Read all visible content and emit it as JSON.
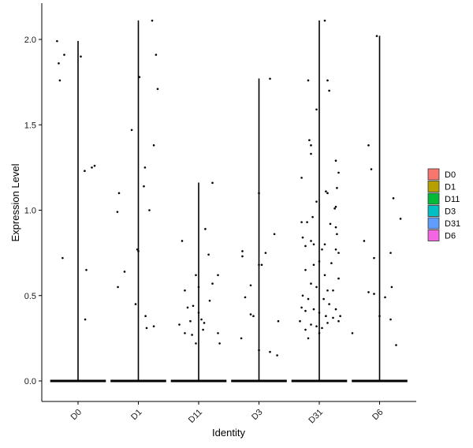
{
  "chart_data": {
    "type": "violin-jitter",
    "xlabel": "Identity",
    "ylabel": "Expression Level",
    "ylim": [
      -0.12,
      2.2
    ],
    "yticks": [
      "0.0",
      "0.5",
      "1.0",
      "1.5",
      "2.0"
    ],
    "ytick_values": [
      0,
      0.5,
      1.0,
      1.5,
      2.0
    ],
    "categories": [
      "D0",
      "D1",
      "D11",
      "D3",
      "D31",
      "D6"
    ],
    "legend": {
      "position": "right",
      "entries": [
        {
          "name": "D0",
          "color": "#F8766D"
        },
        {
          "name": "D1",
          "color": "#B79F00"
        },
        {
          "name": "D11",
          "color": "#00BA38"
        },
        {
          "name": "D3",
          "color": "#00BFC4"
        },
        {
          "name": "D31",
          "color": "#619CFF"
        },
        {
          "name": "D6",
          "color": "#F564E3"
        }
      ]
    },
    "series": [
      {
        "name": "D0",
        "max": 1.99,
        "points": [
          [
            -0.38,
            1.99
          ],
          [
            -0.35,
            1.86
          ],
          [
            -0.33,
            1.76
          ],
          [
            -0.25,
            1.91
          ],
          [
            0.05,
            1.9
          ],
          [
            0.12,
            1.23
          ],
          [
            0.25,
            1.25
          ],
          [
            0.3,
            1.26
          ],
          [
            -0.28,
            0.72
          ],
          [
            0.15,
            0.65
          ],
          [
            0.13,
            0.36
          ]
        ]
      },
      {
        "name": "D1",
        "max": 2.11,
        "points": [
          [
            0.25,
            2.11
          ],
          [
            0.32,
            1.91
          ],
          [
            0.35,
            1.71
          ],
          [
            0.02,
            1.78
          ],
          [
            -0.12,
            1.47
          ],
          [
            0.12,
            1.25
          ],
          [
            0.28,
            1.38
          ],
          [
            0.1,
            1.14
          ],
          [
            -0.35,
            1.1
          ],
          [
            -0.38,
            0.99
          ],
          [
            0.2,
            1.0
          ],
          [
            -0.02,
            0.77
          ],
          [
            0.0,
            0.76
          ],
          [
            -0.25,
            0.64
          ],
          [
            -0.37,
            0.55
          ],
          [
            -0.05,
            0.45
          ],
          [
            0.13,
            0.38
          ],
          [
            0.15,
            0.31
          ],
          [
            0.28,
            0.32
          ]
        ]
      },
      {
        "name": "D11",
        "max": 1.16,
        "points": [
          [
            0.25,
            1.16
          ],
          [
            -0.3,
            0.82
          ],
          [
            0.12,
            0.89
          ],
          [
            0.18,
            0.74
          ],
          [
            -0.25,
            0.53
          ],
          [
            -0.05,
            0.62
          ],
          [
            0.0,
            0.55
          ],
          [
            -0.1,
            0.44
          ],
          [
            0.2,
            0.47
          ],
          [
            0.35,
            0.62
          ],
          [
            -0.2,
            0.43
          ],
          [
            0.0,
            0.4
          ],
          [
            0.05,
            0.36
          ],
          [
            0.1,
            0.34
          ],
          [
            -0.15,
            0.35
          ],
          [
            -0.35,
            0.33
          ],
          [
            0.08,
            0.3
          ],
          [
            -0.25,
            0.28
          ],
          [
            -0.12,
            0.27
          ],
          [
            0.35,
            0.28
          ],
          [
            0.38,
            0.22
          ],
          [
            -0.05,
            0.22
          ],
          [
            0.25,
            0.57
          ]
        ]
      },
      {
        "name": "D3",
        "max": 1.77,
        "points": [
          [
            0.2,
            1.77
          ],
          [
            0.0,
            1.1
          ],
          [
            0.28,
            0.86
          ],
          [
            -0.3,
            0.76
          ],
          [
            -0.3,
            0.73
          ],
          [
            0.12,
            0.75
          ],
          [
            0.0,
            0.68
          ],
          [
            0.05,
            0.68
          ],
          [
            -0.15,
            0.56
          ],
          [
            -0.25,
            0.49
          ],
          [
            -0.15,
            0.39
          ],
          [
            -0.1,
            0.38
          ],
          [
            0.35,
            0.35
          ],
          [
            0.0,
            0.18
          ],
          [
            0.2,
            0.17
          ],
          [
            0.33,
            0.15
          ],
          [
            -0.32,
            0.25
          ]
        ]
      },
      {
        "name": "D31",
        "max": 2.11,
        "points": [
          [
            0.1,
            2.11
          ],
          [
            -0.2,
            1.76
          ],
          [
            0.15,
            1.76
          ],
          [
            0.18,
            1.7
          ],
          [
            -0.05,
            1.59
          ],
          [
            -0.18,
            1.41
          ],
          [
            -0.15,
            1.38
          ],
          [
            -0.15,
            1.33
          ],
          [
            0.3,
            1.29
          ],
          [
            0.35,
            1.22
          ],
          [
            -0.32,
            1.19
          ],
          [
            0.12,
            1.11
          ],
          [
            0.15,
            1.1
          ],
          [
            0.32,
            1.13
          ],
          [
            -0.05,
            1.05
          ],
          [
            0.3,
            1.02
          ],
          [
            0.28,
            1.01
          ],
          [
            -0.12,
            0.96
          ],
          [
            -0.32,
            0.93
          ],
          [
            0.2,
            0.92
          ],
          [
            -0.22,
            0.93
          ],
          [
            0.3,
            0.9
          ],
          [
            0.32,
            0.86
          ],
          [
            -0.3,
            0.84
          ],
          [
            -0.15,
            0.82
          ],
          [
            -0.1,
            0.8
          ],
          [
            0.1,
            0.8
          ],
          [
            0.3,
            0.77
          ],
          [
            -0.25,
            0.79
          ],
          [
            0.35,
            0.75
          ],
          [
            0.05,
            0.77
          ],
          [
            0.22,
            0.69
          ],
          [
            -0.1,
            0.68
          ],
          [
            0.0,
            0.7
          ],
          [
            -0.25,
            0.65
          ],
          [
            0.1,
            0.62
          ],
          [
            0.35,
            0.6
          ],
          [
            -0.15,
            0.57
          ],
          [
            -0.05,
            0.55
          ],
          [
            0.15,
            0.53
          ],
          [
            0.25,
            0.53
          ],
          [
            -0.3,
            0.5
          ],
          [
            -0.2,
            0.48
          ],
          [
            0.08,
            0.48
          ],
          [
            0.18,
            0.45
          ],
          [
            0.3,
            0.42
          ],
          [
            -0.32,
            0.43
          ],
          [
            -0.25,
            0.41
          ],
          [
            -0.1,
            0.42
          ],
          [
            0.0,
            0.4
          ],
          [
            0.12,
            0.38
          ],
          [
            0.25,
            0.37
          ],
          [
            0.35,
            0.35
          ],
          [
            -0.35,
            0.35
          ],
          [
            -0.15,
            0.33
          ],
          [
            -0.05,
            0.32
          ],
          [
            0.05,
            0.31
          ],
          [
            0.15,
            0.34
          ],
          [
            -0.25,
            0.3
          ],
          [
            0.0,
            0.28
          ],
          [
            -0.2,
            0.25
          ],
          [
            0.38,
            0.38
          ],
          [
            0.6,
            0.28
          ]
        ]
      },
      {
        "name": "D6",
        "max": 2.02,
        "points": [
          [
            -0.05,
            2.02
          ],
          [
            -0.2,
            1.38
          ],
          [
            -0.15,
            1.24
          ],
          [
            0.25,
            1.07
          ],
          [
            -0.28,
            0.82
          ],
          [
            0.2,
            0.75
          ],
          [
            -0.1,
            0.72
          ],
          [
            0.38,
            0.95
          ],
          [
            -0.2,
            0.52
          ],
          [
            -0.1,
            0.51
          ],
          [
            0.1,
            0.49
          ],
          [
            0.22,
            0.55
          ],
          [
            0.0,
            0.38
          ],
          [
            0.2,
            0.36
          ],
          [
            0.3,
            0.21
          ]
        ]
      }
    ]
  }
}
